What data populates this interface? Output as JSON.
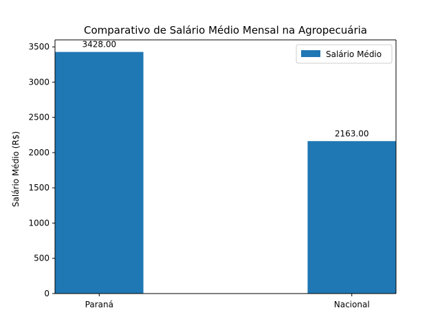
{
  "chart_data": {
    "type": "bar",
    "title": "Comparativo de Salário Médio Mensal na Agropecuária",
    "xlabel": "",
    "ylabel": "Salário Médio (R$)",
    "categories": [
      "Paraná",
      "Nacional"
    ],
    "series": [
      {
        "name": "Salário Médio",
        "values": [
          3428.0,
          2163.0
        ],
        "color": "#1f77b4"
      }
    ],
    "data_labels": [
      "3428.00",
      "2163.00"
    ],
    "yticks": [
      0,
      500,
      1000,
      1500,
      2000,
      2500,
      3000,
      3500
    ],
    "ylim": [
      0,
      3599.4
    ],
    "grid": false,
    "legend_position": "upper right"
  }
}
